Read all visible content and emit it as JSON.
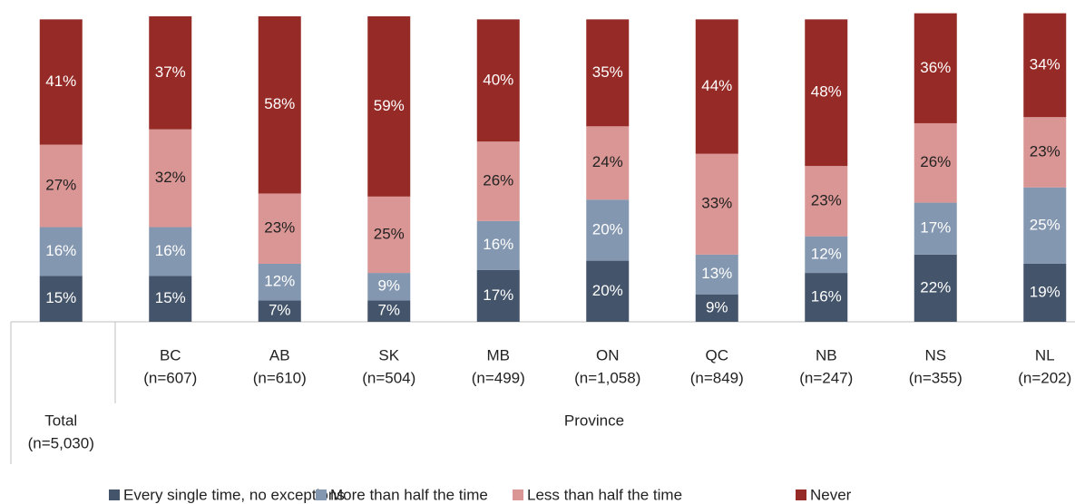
{
  "chart_data": {
    "type": "stacked_bar",
    "categories": [
      "Total",
      "BC",
      "AB",
      "SK",
      "MB",
      "ON",
      "QC",
      "NB",
      "NS",
      "NL"
    ],
    "sample_sizes": [
      "(n=5,030)",
      "(n=607)",
      "(n=610)",
      "(n=504)",
      "(n=499)",
      "(n=1,058)",
      "(n=849)",
      "(n=247)",
      "(n=355)",
      "(n=202)"
    ],
    "group_label": "Province",
    "ylim": [
      0,
      100
    ],
    "legend": "bottom",
    "series": [
      {
        "name": "Every single time, no exceptions",
        "color": "#44546a",
        "label_color": "#ffffff",
        "values": [
          15,
          15,
          7,
          7,
          17,
          20,
          9,
          16,
          22,
          19
        ],
        "value_labels": [
          "15%",
          "15%",
          "7%",
          "7%",
          "17%",
          "20%",
          "9%",
          "16%",
          "22%",
          "19%"
        ]
      },
      {
        "name": "More than half the time",
        "color": "#8497b0",
        "label_color": "#ffffff",
        "values": [
          16,
          16,
          12,
          9,
          16,
          20,
          13,
          12,
          17,
          25
        ],
        "value_labels": [
          "16%",
          "16%",
          "12%",
          "9%",
          "16%",
          "20%",
          "13%",
          "12%",
          "17%",
          "25%"
        ]
      },
      {
        "name": "Less than half the time",
        "color": "#da9694",
        "label_color": "#222222",
        "values": [
          27,
          32,
          23,
          25,
          26,
          24,
          33,
          23,
          26,
          23
        ],
        "value_labels": [
          "27%",
          "32%",
          "23%",
          "25%",
          "26%",
          "24%",
          "33%",
          "23%",
          "26%",
          "23%"
        ]
      },
      {
        "name": "Never",
        "color": "#962a26",
        "label_color": "#ffffff",
        "values": [
          41,
          37,
          58,
          59,
          40,
          35,
          44,
          48,
          36,
          34
        ],
        "value_labels": [
          "41%",
          "37%",
          "58%",
          "59%",
          "40%",
          "35%",
          "44%",
          "48%",
          "36%",
          "34%"
        ]
      }
    ]
  }
}
